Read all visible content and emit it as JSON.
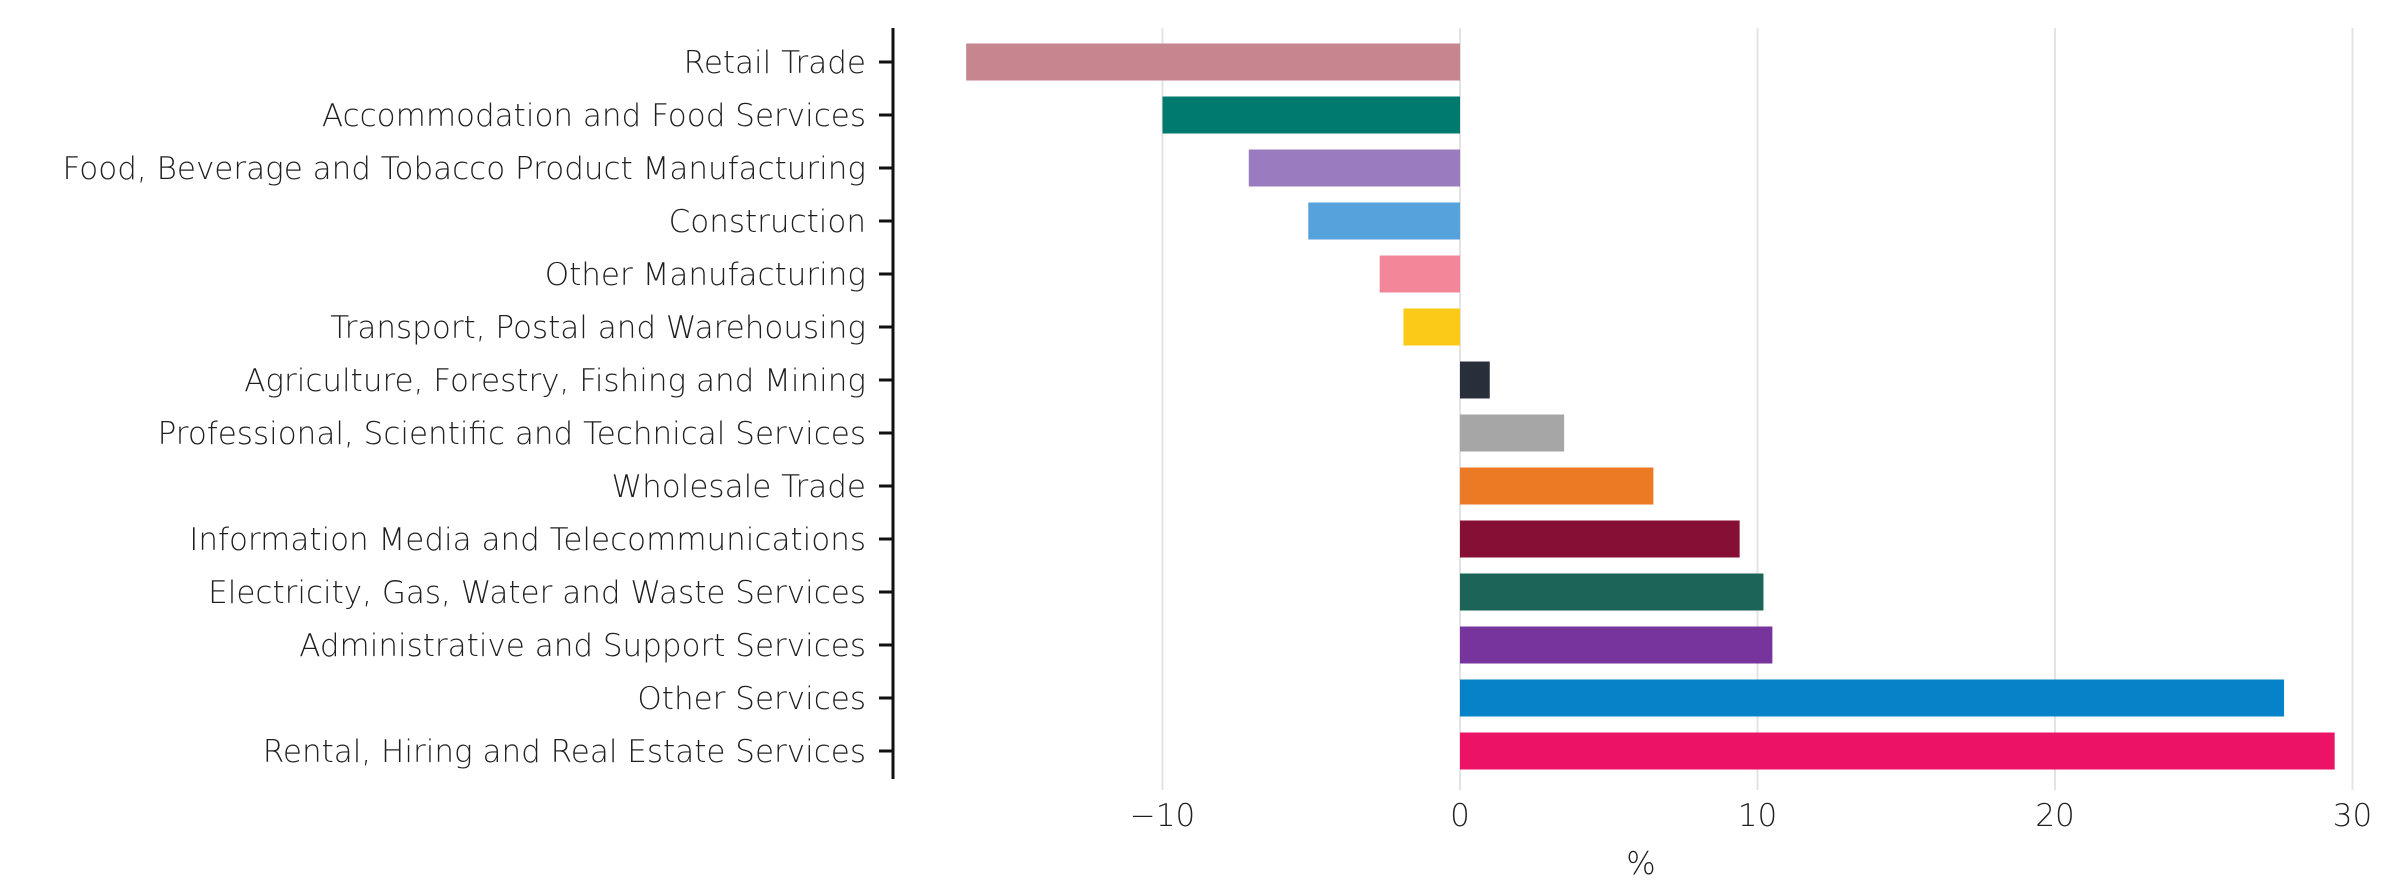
{
  "chart_data": {
    "type": "bar",
    "orientation": "horizontal",
    "categories": [
      "Retail Trade",
      "Accommodation and Food Services",
      "Food, Beverage and Tobacco Product Manufacturing",
      "Construction",
      "Other Manufacturing",
      "Transport, Postal and Warehousing",
      "Agriculture, Forestry, Fishing and Mining",
      "Professional, Scientific and Technical Services",
      "Wholesale Trade",
      "Information Media and Telecommunications",
      "Electricity, Gas, Water and Waste Services",
      "Administrative and Support Services",
      "Other Services",
      "Rental, Hiring and Real Estate Services"
    ],
    "values": [
      -16.6,
      -10.0,
      -7.1,
      -5.1,
      -2.7,
      -1.9,
      1.0,
      3.5,
      6.5,
      9.4,
      10.2,
      10.5,
      27.7,
      29.4
    ],
    "colors": [
      "#c58690",
      "#007a6e",
      "#9b7bbf",
      "#55a2dc",
      "#f38799",
      "#fbc917",
      "#292f3a",
      "#a6a6a6",
      "#ec7a25",
      "#861035",
      "#1c6358",
      "#77349c",
      "#0682c8",
      "#ec1367"
    ],
    "xlabel": "%",
    "ylabel": "",
    "xlim": [
      -18,
      30
    ],
    "xticks": [
      -10,
      0,
      10,
      20,
      30
    ],
    "xtick_labels": [
      "−10",
      "0",
      "10",
      "20",
      "30"
    ],
    "grid": "vertical"
  }
}
